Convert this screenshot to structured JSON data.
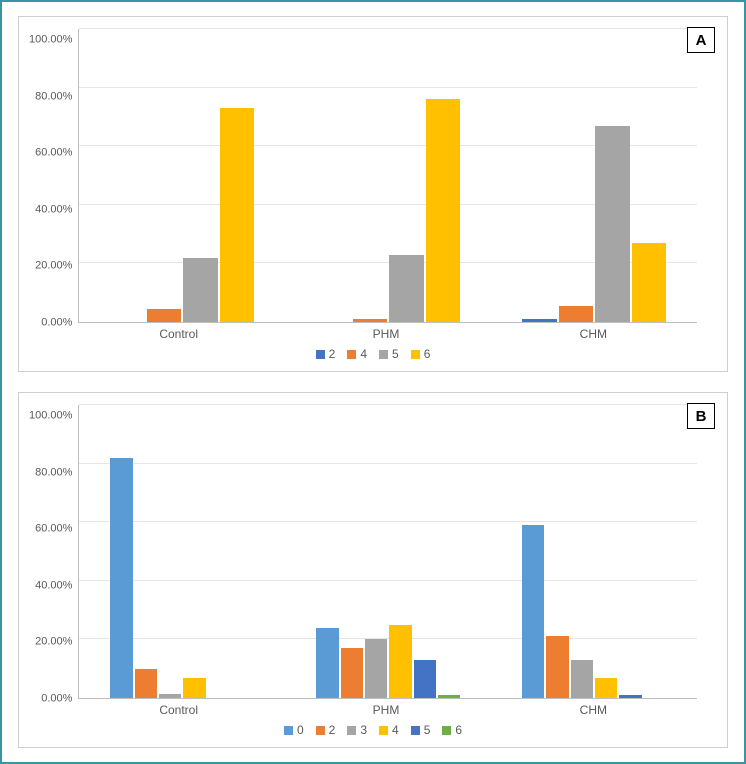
{
  "figure": {
    "container_border_color": "#3a94a6",
    "panel_border_color": "#cfcfcf",
    "background_color": "#ffffff",
    "axis_text_color": "#595959",
    "grid_color": "#e6e6e6",
    "axis_line_color": "#bfbfbf",
    "label_fontsize": 11,
    "category_fontsize": 12
  },
  "chartA": {
    "label": "A",
    "type": "grouped-bar",
    "categories": [
      "Control",
      "PHM",
      "CHM"
    ],
    "series": [
      {
        "name": "2",
        "color": "#4472c4",
        "values": [
          0.0,
          0.0,
          1.0
        ]
      },
      {
        "name": "4",
        "color": "#ed7d31",
        "values": [
          4.5,
          1.0,
          5.5
        ]
      },
      {
        "name": "5",
        "color": "#a5a5a5",
        "values": [
          22.0,
          23.0,
          67.0
        ]
      },
      {
        "name": "6",
        "color": "#ffc000",
        "values": [
          73.0,
          76.0,
          27.0
        ]
      }
    ],
    "y": {
      "min": 0,
      "max": 100,
      "step": 20,
      "suffix": ".00%"
    }
  },
  "chartB": {
    "label": "B",
    "type": "grouped-bar",
    "categories": [
      "Control",
      "PHM",
      "CHM"
    ],
    "series": [
      {
        "name": "0",
        "color": "#5b9bd5",
        "values": [
          82.0,
          24.0,
          59.0
        ]
      },
      {
        "name": "2",
        "color": "#ed7d31",
        "values": [
          10.0,
          17.0,
          21.0
        ]
      },
      {
        "name": "3",
        "color": "#a5a5a5",
        "values": [
          1.5,
          20.0,
          13.0
        ]
      },
      {
        "name": "4",
        "color": "#ffc000",
        "values": [
          7.0,
          25.0,
          7.0
        ]
      },
      {
        "name": "5",
        "color": "#4472c4",
        "values": [
          0.0,
          13.0,
          1.0
        ]
      },
      {
        "name": "6",
        "color": "#70ad47",
        "values": [
          0.0,
          1.0,
          0.0
        ]
      }
    ],
    "y": {
      "min": 0,
      "max": 100,
      "step": 20,
      "suffix": ".00%"
    }
  }
}
